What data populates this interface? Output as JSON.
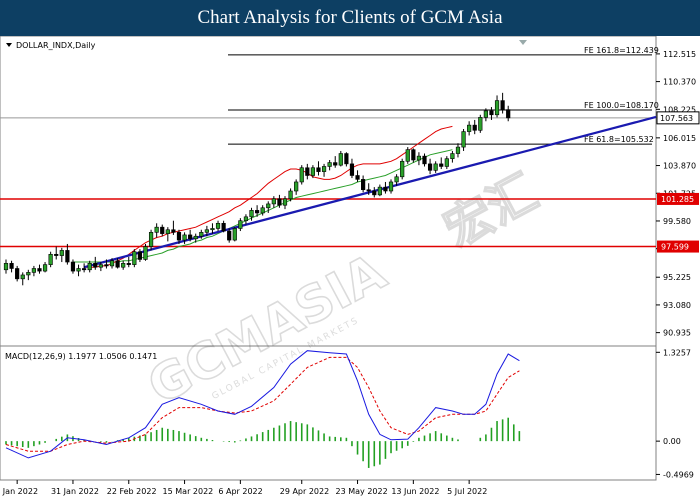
{
  "header": {
    "title": "Chart Analysis for Clients of GCM Asia"
  },
  "watermark": {
    "brand": "GCMASIA",
    "cjk": "宏汇",
    "tagline": "GLOBAL CAPITAL MARKETS"
  },
  "chart_data": [
    {
      "type": "candlestick",
      "title": "DOLLAR_INDX,Daily",
      "ylim": [
        89.9,
        113.9
      ],
      "y_ticks": [
        "112.515",
        "110.370",
        "108.225",
        "106.015",
        "103.870",
        "101.725",
        "99.580",
        "97.435",
        "95.225",
        "93.080",
        "90.935"
      ],
      "x_ticks": [
        "7 Jan 2022",
        "31 Jan 2022",
        "22 Feb 2022",
        "15 Mar 2022",
        "6 Apr 2022",
        "29 Apr 2022",
        "23 May 2022",
        "13 Jun 2022",
        "5 Jul 2022"
      ],
      "current_price": "107.563",
      "horizontal_levels": [
        {
          "label": "101.285",
          "value": 101.285,
          "color": "#e00000"
        },
        {
          "label": "97.599",
          "value": 97.599,
          "color": "#e00000"
        }
      ],
      "fibonacci": [
        {
          "label": "FE 161.8=112.439",
          "value": 112.439
        },
        {
          "label": "FE 100.0=108.170",
          "value": 108.17
        },
        {
          "label": "FE 61.8=105.532",
          "value": 105.532
        }
      ],
      "trendline": {
        "color": "#1a1ab0",
        "points": [
          [
            14,
            96.0
          ],
          [
            125,
            108.6
          ]
        ]
      },
      "candles": [
        [
          95.8,
          96.6,
          95.5,
          96.3
        ],
        [
          96.3,
          96.5,
          95.6,
          95.9
        ],
        [
          95.9,
          96.1,
          94.9,
          95.1
        ],
        [
          95.1,
          95.6,
          94.6,
          95.4
        ],
        [
          95.4,
          95.8,
          95.0,
          95.6
        ],
        [
          95.6,
          96.1,
          95.3,
          95.9
        ],
        [
          95.9,
          96.2,
          95.5,
          95.7
        ],
        [
          95.7,
          96.4,
          95.6,
          96.2
        ],
        [
          96.2,
          97.2,
          96.0,
          97.0
        ],
        [
          97.0,
          97.6,
          96.6,
          96.9
        ],
        [
          96.9,
          97.5,
          96.4,
          97.3
        ],
        [
          97.3,
          97.8,
          96.2,
          96.4
        ],
        [
          96.4,
          96.6,
          95.5,
          95.7
        ],
        [
          95.7,
          96.2,
          95.3,
          95.9
        ],
        [
          95.9,
          96.3,
          95.6,
          95.8
        ],
        [
          95.8,
          96.5,
          95.6,
          96.3
        ],
        [
          96.3,
          96.8,
          95.8,
          96.0
        ],
        [
          96.0,
          96.4,
          95.7,
          96.2
        ],
        [
          96.2,
          96.6,
          95.9,
          96.1
        ],
        [
          96.1,
          96.7,
          95.9,
          96.5
        ],
        [
          96.5,
          96.7,
          95.9,
          96.0
        ],
        [
          96.0,
          96.5,
          95.8,
          96.3
        ],
        [
          96.3,
          96.8,
          96.0,
          96.2
        ],
        [
          96.2,
          97.4,
          96.0,
          97.2
        ],
        [
          97.2,
          97.4,
          96.4,
          96.6
        ],
        [
          96.6,
          97.8,
          96.5,
          97.6
        ],
        [
          97.6,
          98.9,
          97.3,
          98.7
        ],
        [
          98.7,
          99.4,
          98.3,
          99.1
        ],
        [
          99.1,
          99.3,
          98.4,
          98.6
        ],
        [
          98.6,
          99.1,
          98.0,
          98.9
        ],
        [
          98.9,
          99.6,
          98.5,
          98.7
        ],
        [
          98.7,
          98.9,
          97.8,
          98.1
        ],
        [
          98.1,
          98.7,
          97.8,
          98.5
        ],
        [
          98.5,
          98.9,
          98.0,
          98.2
        ],
        [
          98.2,
          98.6,
          97.9,
          98.4
        ],
        [
          98.4,
          98.9,
          98.2,
          98.7
        ],
        [
          98.7,
          99.2,
          98.4,
          98.9
        ],
        [
          98.9,
          99.4,
          98.6,
          99.0
        ],
        [
          99.0,
          99.6,
          98.8,
          99.4
        ],
        [
          99.4,
          99.6,
          98.7,
          98.8
        ],
        [
          98.8,
          99.0,
          97.9,
          98.1
        ],
        [
          98.1,
          99.1,
          98.0,
          99.0
        ],
        [
          99.0,
          99.8,
          98.8,
          99.6
        ],
        [
          99.6,
          100.1,
          99.3,
          99.9
        ],
        [
          99.9,
          100.6,
          99.6,
          100.4
        ],
        [
          100.4,
          100.8,
          99.9,
          100.2
        ],
        [
          100.2,
          100.8,
          100.0,
          100.6
        ],
        [
          100.6,
          101.1,
          100.2,
          100.9
        ],
        [
          100.9,
          101.5,
          100.6,
          101.3
        ],
        [
          101.3,
          101.6,
          100.6,
          100.8
        ],
        [
          100.8,
          101.5,
          100.5,
          101.3
        ],
        [
          101.3,
          102.1,
          101.1,
          101.9
        ],
        [
          101.9,
          102.8,
          101.6,
          102.6
        ],
        [
          102.6,
          103.9,
          102.4,
          103.7
        ],
        [
          103.7,
          104.0,
          102.8,
          103.1
        ],
        [
          103.1,
          103.9,
          102.9,
          103.7
        ],
        [
          103.7,
          104.2,
          103.1,
          103.4
        ],
        [
          103.4,
          104.0,
          103.0,
          103.8
        ],
        [
          103.8,
          104.3,
          103.5,
          104.1
        ],
        [
          104.1,
          104.6,
          103.7,
          103.9
        ],
        [
          103.9,
          105.0,
          103.8,
          104.8
        ],
        [
          104.8,
          104.9,
          103.8,
          104.0
        ],
        [
          104.0,
          104.4,
          102.9,
          103.1
        ],
        [
          103.1,
          103.5,
          102.6,
          102.8
        ],
        [
          102.8,
          103.1,
          101.8,
          102.0
        ],
        [
          102.0,
          102.5,
          101.6,
          101.9
        ],
        [
          101.9,
          102.2,
          101.4,
          101.6
        ],
        [
          101.6,
          102.4,
          101.5,
          102.2
        ],
        [
          102.2,
          102.6,
          101.7,
          101.9
        ],
        [
          101.9,
          102.8,
          101.7,
          102.6
        ],
        [
          102.6,
          103.2,
          102.3,
          103.0
        ],
        [
          103.0,
          104.4,
          102.8,
          104.2
        ],
        [
          104.2,
          105.3,
          104.0,
          105.1
        ],
        [
          105.1,
          105.2,
          104.1,
          104.3
        ],
        [
          104.3,
          104.9,
          103.9,
          104.6
        ],
        [
          104.6,
          104.8,
          103.8,
          104.0
        ],
        [
          104.0,
          104.4,
          103.2,
          103.5
        ],
        [
          103.5,
          104.2,
          103.3,
          104.0
        ],
        [
          104.0,
          104.5,
          103.6,
          103.8
        ],
        [
          103.8,
          104.6,
          103.6,
          104.4
        ],
        [
          104.4,
          105.0,
          104.1,
          104.8
        ],
        [
          104.8,
          105.6,
          104.5,
          105.3
        ],
        [
          105.3,
          106.7,
          105.0,
          106.5
        ],
        [
          106.5,
          107.3,
          106.2,
          107.0
        ],
        [
          107.0,
          107.4,
          106.3,
          106.6
        ],
        [
          106.6,
          107.8,
          106.4,
          107.6
        ],
        [
          107.6,
          108.3,
          107.3,
          108.1
        ],
        [
          108.1,
          108.4,
          107.4,
          107.8
        ],
        [
          107.8,
          109.3,
          107.6,
          108.9
        ],
        [
          108.9,
          109.5,
          107.9,
          108.2
        ],
        [
          108.2,
          108.5,
          107.3,
          107.56
        ]
      ],
      "ema_red": {
        "color": "#e00000",
        "start": 14,
        "values": [
          96.0,
          96.0,
          96.0,
          96.1,
          96.1,
          96.3,
          96.5,
          96.7,
          97.0,
          97.3,
          97.6,
          97.9,
          98.1,
          98.3,
          98.4,
          98.6,
          98.7,
          98.8,
          98.9,
          99.0,
          99.1,
          99.3,
          99.5,
          99.7,
          99.9,
          100.1,
          100.3,
          100.6,
          100.8,
          101.1,
          101.4,
          101.7,
          102.1,
          102.5,
          102.8,
          103.1,
          103.4,
          103.6,
          103.6,
          103.5,
          103.3,
          103.0,
          102.9,
          102.8,
          102.8,
          102.9,
          103.1,
          103.4,
          103.7,
          103.9,
          104.0,
          104.0,
          104.0,
          104.0,
          104.1,
          104.2,
          104.4,
          104.7,
          105.0,
          105.3,
          105.6,
          105.9,
          106.2,
          106.5,
          106.7,
          106.8,
          106.9
        ]
      },
      "ema_green": {
        "color": "#2aa02a",
        "start": 12,
        "values": [
          96.4,
          96.4,
          96.4,
          96.4,
          96.4,
          96.4,
          96.4,
          96.4,
          96.4,
          96.5,
          96.5,
          96.6,
          96.7,
          96.8,
          96.9,
          97.0,
          97.1,
          97.3,
          97.4,
          97.6,
          97.7,
          97.8,
          98.0,
          98.1,
          98.3,
          98.4,
          98.6,
          98.8,
          99.0,
          99.2,
          99.4,
          99.6,
          99.8,
          100.0,
          100.2,
          100.4,
          100.6,
          100.8,
          101.0,
          101.2,
          101.4,
          101.5,
          101.6,
          101.7,
          101.8,
          101.9,
          102.0,
          102.1,
          102.2,
          102.3,
          102.4,
          102.6,
          102.7,
          102.8,
          102.9,
          103.0,
          103.1,
          103.3,
          103.5,
          103.7,
          103.9,
          104.1,
          104.3,
          104.5,
          104.7,
          104.8,
          104.9,
          105.0,
          105.1
        ]
      }
    },
    {
      "type": "macd",
      "title": "MACD(12,26,9) 1.1977 1.0506 0.1471",
      "ylim": [
        -0.58,
        1.42
      ],
      "y_ticks": [
        "1.3257",
        "0.00",
        "-0.4969"
      ],
      "macd_color": "#1a1ae0",
      "signal_color": "#e00000",
      "histogram_color": "#22a022",
      "macd_points": [
        [
          0,
          -0.1
        ],
        [
          4,
          -0.25
        ],
        [
          8,
          -0.15
        ],
        [
          11,
          0.05
        ],
        [
          14,
          0.02
        ],
        [
          18,
          -0.05
        ],
        [
          22,
          0.05
        ],
        [
          25,
          0.2
        ],
        [
          28,
          0.55
        ],
        [
          31,
          0.65
        ],
        [
          35,
          0.55
        ],
        [
          38,
          0.45
        ],
        [
          41,
          0.4
        ],
        [
          44,
          0.52
        ],
        [
          48,
          0.8
        ],
        [
          51,
          1.15
        ],
        [
          54,
          1.35
        ],
        [
          58,
          1.32
        ],
        [
          61,
          1.3
        ],
        [
          63,
          0.9
        ],
        [
          65,
          0.4
        ],
        [
          67,
          0.1
        ],
        [
          69,
          0.02
        ],
        [
          72,
          0.03
        ],
        [
          74,
          0.2
        ],
        [
          77,
          0.5
        ],
        [
          80,
          0.45
        ],
        [
          82,
          0.4
        ],
        [
          84,
          0.4
        ],
        [
          86,
          0.55
        ],
        [
          88,
          1.0
        ],
        [
          90,
          1.3
        ],
        [
          92,
          1.2
        ]
      ],
      "signal_points": [
        [
          0,
          -0.05
        ],
        [
          4,
          -0.15
        ],
        [
          8,
          -0.15
        ],
        [
          11,
          -0.05
        ],
        [
          14,
          0.0
        ],
        [
          18,
          -0.03
        ],
        [
          22,
          0.0
        ],
        [
          25,
          0.1
        ],
        [
          28,
          0.35
        ],
        [
          31,
          0.5
        ],
        [
          35,
          0.5
        ],
        [
          38,
          0.45
        ],
        [
          41,
          0.42
        ],
        [
          44,
          0.45
        ],
        [
          48,
          0.6
        ],
        [
          51,
          0.85
        ],
        [
          54,
          1.1
        ],
        [
          58,
          1.25
        ],
        [
          61,
          1.25
        ],
        [
          63,
          1.1
        ],
        [
          65,
          0.8
        ],
        [
          67,
          0.45
        ],
        [
          69,
          0.2
        ],
        [
          72,
          0.1
        ],
        [
          74,
          0.15
        ],
        [
          77,
          0.35
        ],
        [
          80,
          0.4
        ],
        [
          82,
          0.4
        ],
        [
          84,
          0.4
        ],
        [
          86,
          0.45
        ],
        [
          88,
          0.7
        ],
        [
          90,
          0.95
        ],
        [
          92,
          1.05
        ]
      ]
    }
  ]
}
